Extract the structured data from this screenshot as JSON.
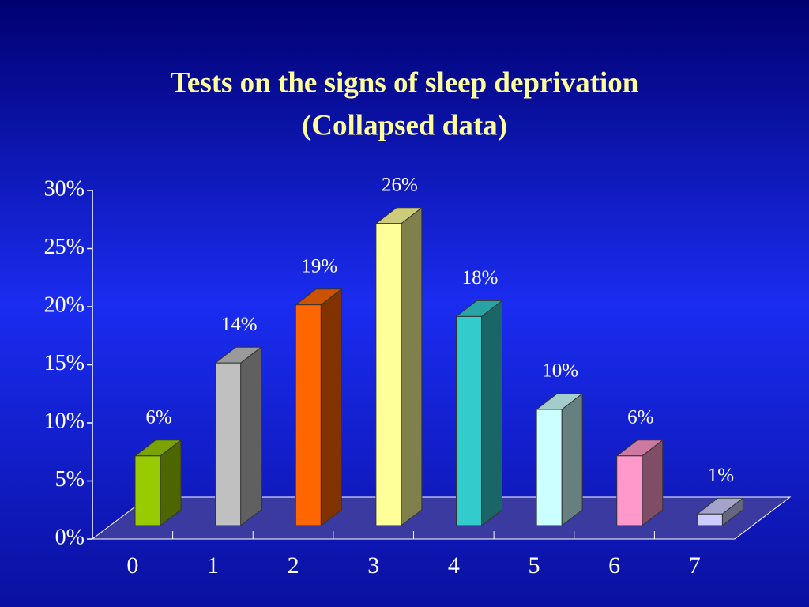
{
  "chart_data": {
    "type": "bar3d",
    "title": "Tests on the signs of sleep deprivation",
    "subtitle": "(Collapsed data)",
    "categories": [
      "0",
      "1",
      "2",
      "3",
      "4",
      "5",
      "6",
      "7"
    ],
    "values": [
      6,
      14,
      19,
      26,
      18,
      10,
      6,
      1
    ],
    "value_labels": [
      "6%",
      "14%",
      "19%",
      "26%",
      "18%",
      "10%",
      "6%",
      "1%"
    ],
    "colors": [
      "#99cc00",
      "#c0c0c0",
      "#ff6600",
      "#ffff99",
      "#33cccc",
      "#ccffff",
      "#ff99cc",
      "#ccccff"
    ],
    "ylim": [
      0,
      30
    ],
    "yticks": [
      {
        "value": 0,
        "label": "0%"
      },
      {
        "value": 5,
        "label": "5%"
      },
      {
        "value": 10,
        "label": "10%"
      },
      {
        "value": 15,
        "label": "15%"
      },
      {
        "value": 20,
        "label": "20%"
      },
      {
        "value": 25,
        "label": "25%"
      },
      {
        "value": 30,
        "label": "30%"
      }
    ]
  }
}
